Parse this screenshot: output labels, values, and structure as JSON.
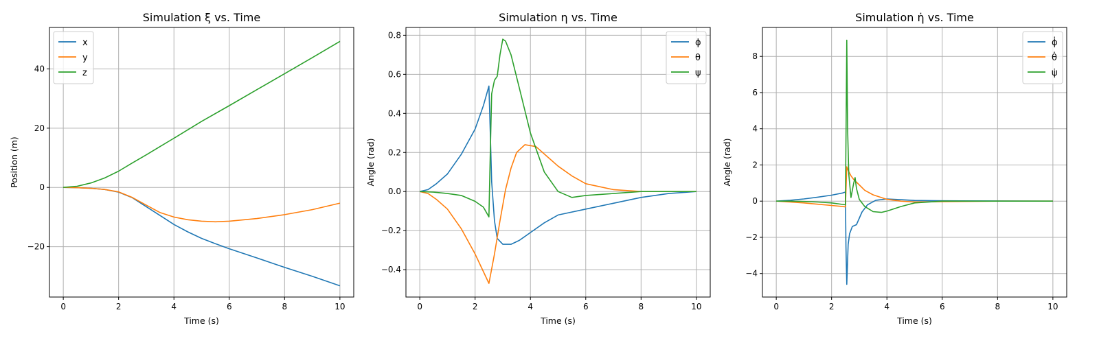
{
  "chart_data": [
    {
      "type": "line",
      "title": "Simulation ξ vs. Time",
      "xlabel": "Time (s)",
      "ylabel": "Position (m)",
      "xlim": [
        -0.5,
        10.5
      ],
      "ylim": [
        -37,
        54
      ],
      "xticks": [
        0,
        2,
        4,
        6,
        8,
        10
      ],
      "yticks": [
        -20,
        0,
        20,
        40
      ],
      "ytick_labels": [
        "−20",
        "0",
        "20",
        "40"
      ],
      "grid": true,
      "legend": "upper-left",
      "series": [
        {
          "name": "x",
          "color": "#1f77b4",
          "x": [
            0,
            0.5,
            1,
            1.5,
            2,
            2.5,
            3,
            3.5,
            4,
            4.5,
            5,
            5.5,
            6,
            7,
            8,
            9,
            10
          ],
          "y": [
            0,
            -0.1,
            -0.3,
            -0.7,
            -1.6,
            -3.5,
            -6.5,
            -9.5,
            -12.5,
            -15,
            -17.2,
            -19,
            -20.7,
            -23.8,
            -27,
            -30,
            -33.2
          ]
        },
        {
          "name": "y",
          "color": "#ff7f0e",
          "x": [
            0,
            0.5,
            1,
            1.5,
            2,
            2.5,
            3,
            3.5,
            4,
            4.5,
            5,
            5.5,
            6,
            7,
            8,
            9,
            10
          ],
          "y": [
            0,
            -0.1,
            -0.3,
            -0.7,
            -1.5,
            -3.4,
            -6,
            -8.5,
            -10,
            -10.9,
            -11.4,
            -11.6,
            -11.4,
            -10.5,
            -9.2,
            -7.5,
            -5.3
          ]
        },
        {
          "name": "z",
          "color": "#2ca02c",
          "x": [
            0,
            0.5,
            1,
            1.5,
            2,
            2.5,
            3,
            3.5,
            4,
            5,
            6,
            7,
            8,
            9,
            10
          ],
          "y": [
            0,
            0.4,
            1.5,
            3.2,
            5.5,
            8.3,
            11,
            13.8,
            16.6,
            22.3,
            27.6,
            33,
            38.4,
            43.8,
            49.3
          ]
        }
      ]
    },
    {
      "type": "line",
      "title": "Simulation η vs. Time",
      "xlabel": "Time (s)",
      "ylabel": "Angle (rad)",
      "xlim": [
        -0.5,
        10.5
      ],
      "ylim": [
        -0.54,
        0.84
      ],
      "xticks": [
        0,
        2,
        4,
        6,
        8,
        10
      ],
      "yticks": [
        -0.4,
        -0.2,
        0.0,
        0.2,
        0.4,
        0.6,
        0.8
      ],
      "ytick_labels": [
        "−0.4",
        "−0.2",
        "0.0",
        "0.2",
        "0.4",
        "0.6",
        "0.8"
      ],
      "grid": true,
      "legend": "upper-right",
      "series": [
        {
          "name": "ϕ",
          "color": "#1f77b4",
          "x": [
            0,
            0.3,
            0.6,
            1,
            1.5,
            2,
            2.3,
            2.5,
            2.55,
            2.6,
            2.7,
            2.8,
            3.0,
            3.3,
            3.6,
            4,
            4.5,
            5,
            6,
            7,
            8,
            9,
            10
          ],
          "y": [
            0,
            0.01,
            0.04,
            0.09,
            0.19,
            0.32,
            0.44,
            0.54,
            0.3,
            0.05,
            -0.15,
            -0.24,
            -0.27,
            -0.27,
            -0.25,
            -0.21,
            -0.16,
            -0.12,
            -0.09,
            -0.06,
            -0.03,
            -0.01,
            0
          ]
        },
        {
          "name": "θ",
          "color": "#ff7f0e",
          "x": [
            0,
            0.3,
            0.6,
            1,
            1.5,
            2,
            2.3,
            2.5,
            2.7,
            2.9,
            3.1,
            3.3,
            3.5,
            3.8,
            4.2,
            4.6,
            5,
            5.5,
            6,
            7,
            8,
            9,
            10
          ],
          "y": [
            0,
            -0.01,
            -0.04,
            -0.09,
            -0.19,
            -0.32,
            -0.41,
            -0.47,
            -0.32,
            -0.15,
            0.01,
            0.12,
            0.2,
            0.24,
            0.23,
            0.18,
            0.13,
            0.08,
            0.04,
            0.01,
            0,
            0,
            0
          ]
        },
        {
          "name": "ψ",
          "color": "#2ca02c",
          "x": [
            0,
            0.5,
            1,
            1.5,
            2,
            2.3,
            2.5,
            2.55,
            2.6,
            2.7,
            2.8,
            2.9,
            3.0,
            3.1,
            3.3,
            3.6,
            4,
            4.5,
            5,
            5.5,
            6,
            7,
            8,
            9,
            10
          ],
          "y": [
            0,
            -0.003,
            -0.01,
            -0.02,
            -0.05,
            -0.08,
            -0.13,
            0.2,
            0.5,
            0.57,
            0.59,
            0.7,
            0.78,
            0.77,
            0.7,
            0.53,
            0.3,
            0.1,
            0.0,
            -0.03,
            -0.02,
            -0.01,
            0,
            0,
            0
          ]
        }
      ]
    },
    {
      "type": "line",
      "title": "Simulation η̇ vs. Time",
      "xlabel": "Time (s)",
      "ylabel": "Angle (rad)",
      "xlim": [
        -0.5,
        10.5
      ],
      "ylim": [
        -5.3,
        9.6
      ],
      "xticks": [
        0,
        2,
        4,
        6,
        8,
        10
      ],
      "yticks": [
        -4,
        -2,
        0,
        2,
        4,
        6,
        8
      ],
      "ytick_labels": [
        "−4",
        "−2",
        "0",
        "2",
        "4",
        "6",
        "8"
      ],
      "grid": true,
      "legend": "upper-right",
      "series": [
        {
          "name": "ϕ̇",
          "color": "#1f77b4",
          "x": [
            0,
            0.5,
            1,
            1.5,
            2,
            2.4,
            2.5,
            2.52,
            2.55,
            2.6,
            2.65,
            2.75,
            2.9,
            3.1,
            3.3,
            3.6,
            4,
            4.5,
            5,
            6,
            8,
            10
          ],
          "y": [
            0,
            0.05,
            0.12,
            0.22,
            0.33,
            0.45,
            0.5,
            -2.5,
            -4.6,
            -2.4,
            -1.8,
            -1.4,
            -1.3,
            -0.6,
            -0.2,
            0.05,
            0.12,
            0.08,
            0.04,
            0.02,
            0.01,
            0
          ]
        },
        {
          "name": "θ̇",
          "color": "#ff7f0e",
          "x": [
            0,
            0.5,
            1,
            1.5,
            2,
            2.4,
            2.5,
            2.55,
            2.6,
            2.7,
            2.8,
            2.9,
            3.0,
            3.2,
            3.5,
            4,
            4.5,
            5,
            6,
            8,
            10
          ],
          "y": [
            0,
            -0.05,
            -0.1,
            -0.17,
            -0.24,
            -0.3,
            -0.32,
            1.9,
            1.7,
            1.4,
            1.2,
            1.05,
            0.9,
            0.6,
            0.35,
            0.1,
            0.0,
            -0.05,
            -0.03,
            0,
            0
          ]
        },
        {
          "name": "ψ̇",
          "color": "#2ca02c",
          "x": [
            0,
            0.5,
            1,
            1.5,
            2,
            2.4,
            2.5,
            2.53,
            2.55,
            2.58,
            2.62,
            2.7,
            2.8,
            2.85,
            2.9,
            3.0,
            3.2,
            3.5,
            3.8,
            4,
            4.5,
            5,
            6,
            8,
            10
          ],
          "y": [
            0,
            0,
            -0.02,
            -0.05,
            -0.1,
            -0.18,
            -0.2,
            5,
            8.9,
            4,
            1.5,
            0.2,
            1.0,
            1.3,
            0.7,
            0.1,
            -0.3,
            -0.58,
            -0.62,
            -0.55,
            -0.3,
            -0.1,
            0,
            0,
            0
          ]
        }
      ]
    }
  ]
}
